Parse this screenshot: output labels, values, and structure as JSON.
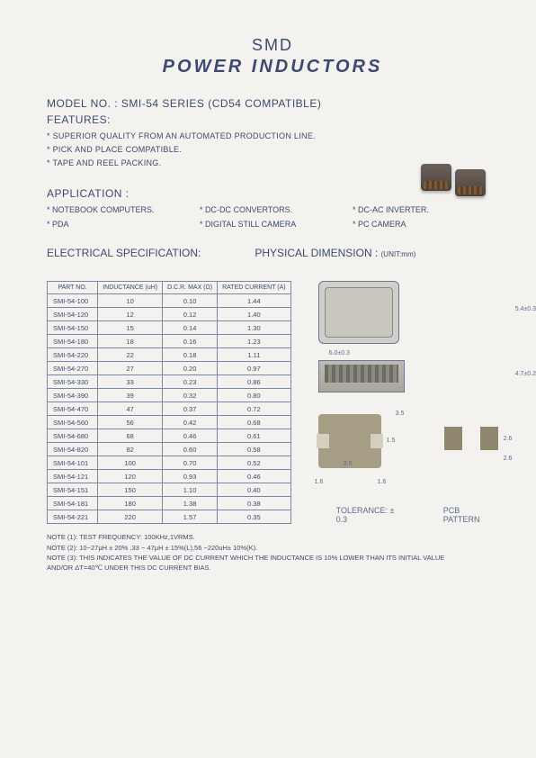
{
  "title_line1": "SMD",
  "title_line2": "POWER   INDUCTORS",
  "model_label": "MODEL NO.   : SMI-54 SERIES (CD54 COMPATIBLE)",
  "features_label": "FEATURES:",
  "features": [
    "* SUPERIOR QUALITY FROM AN AUTOMATED PRODUCTION LINE.",
    "* PICK AND PLACE COMPATIBLE.",
    "* TAPE AND REEL PACKING."
  ],
  "application_label": "APPLICATION :",
  "applications": [
    "* NOTEBOOK COMPUTERS.",
    "* DC-DC CONVERTORS.",
    "* DC-AC INVERTER.",
    "* PDA",
    "* DIGITAL STILL CAMERA",
    "* PC CAMERA"
  ],
  "elec_spec_label": "ELECTRICAL SPECIFICATION:",
  "phys_dim_label": "PHYSICAL DIMENSION :",
  "phys_dim_unit": "(UNIT:mm)",
  "table": {
    "headers": [
      "PART   NO.",
      "INDUCTANCE (uH)",
      "D.C.R. MAX (Ω)",
      "RATED CURRENT (A)"
    ],
    "rows": [
      [
        "SMI-54-100",
        "10",
        "0.10",
        "1.44"
      ],
      [
        "SMI-54-120",
        "12",
        "0.12",
        "1.40"
      ],
      [
        "SMI-54-150",
        "15",
        "0.14",
        "1.30"
      ],
      [
        "SMI-54-180",
        "18",
        "0.16",
        "1.23"
      ],
      [
        "SMI-54-220",
        "22",
        "0.18",
        "1.11"
      ],
      [
        "SMI-54-270",
        "27",
        "0.20",
        "0.97"
      ],
      [
        "SMI-54-330",
        "33",
        "0.23",
        "0.86"
      ],
      [
        "SMI-54-390",
        "39",
        "0.32",
        "0.80"
      ],
      [
        "SMI-54-470",
        "47",
        "0.37",
        "0.72"
      ],
      [
        "SMI-54-560",
        "56",
        "0.42",
        "0.68"
      ],
      [
        "SMI-54-680",
        "68",
        "0.46",
        "0.61"
      ],
      [
        "SMI-54-820",
        "82",
        "0.60",
        "0.58"
      ],
      [
        "SMI-54-101",
        "100",
        "0.70",
        "0.52"
      ],
      [
        "SMI-54-121",
        "120",
        "0.93",
        "0.46"
      ],
      [
        "SMI-54-151",
        "150",
        "1.10",
        "0.40"
      ],
      [
        "SMI-54-181",
        "180",
        "1.38",
        "0.38"
      ],
      [
        "SMI-54-221",
        "220",
        "1.57",
        "0.35"
      ]
    ]
  },
  "dims": {
    "height": "5.4±0.3",
    "width": "6.0±0.3",
    "thickness": "4.7±0.2",
    "pad_w": "3.5",
    "pad_gap": "1.5",
    "pad_l": "3.0",
    "lead_l": "1.6",
    "lead_r": "1.6",
    "pcb_h": "2.6",
    "pcb_gap": "2.6"
  },
  "tolerance_label": "TOLERANCE:  ± 0.3",
  "pcb_label": "PCB PATTERN",
  "notes": [
    "NOTE (1): TEST FREQUENCY: 100KHz,1VRMS.",
    "NOTE (2): 10~27μH ± 20% ,33 ~ 47μH ± 15%(L),56 ~220uH± 10%(K).",
    "NOTE (3): THIS INDICATES THE VALUE OF DC CURRENT WHICH THE INDUCTANCE IS 10% LOWER THAN ITS INITIAL VALUE",
    "             AND/OR  ΔT=40℃  UNDER THIS DC CURRENT BIAS."
  ],
  "colors": {
    "background": "#f4f2ee",
    "text": "#3b4a6e",
    "table_border": "#7a86a8",
    "diagram_fill": "#d0cfc8",
    "footprint_fill": "#a59e85"
  }
}
